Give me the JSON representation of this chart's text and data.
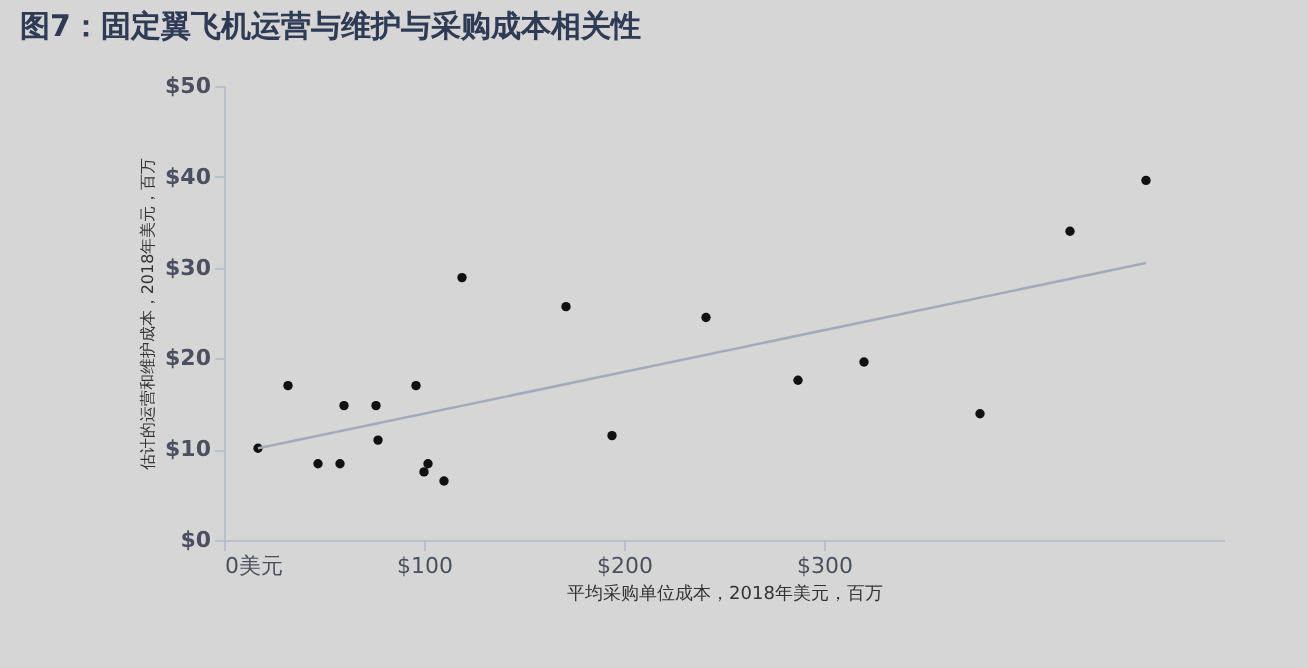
{
  "chart_data": {
    "type": "scatter",
    "title": "图7：固定翼飞机运营与维护与采购成本相关性",
    "xlabel": "平均采购单位成本，2018年美元，百万",
    "ylabel": "估计的运营和维护成本，2018年美元，百万",
    "xlim": [
      0,
      500
    ],
    "xticks": [
      {
        "value": 0,
        "label": "0美元"
      },
      {
        "value": 100,
        "label": "$100"
      },
      {
        "value": 200,
        "label": "$200"
      },
      {
        "value": 300,
        "label": "$300"
      }
    ],
    "ylim": [
      0,
      50
    ],
    "yticks": [
      {
        "value": 0,
        "label": "$0"
      },
      {
        "value": 10,
        "label": "$10"
      },
      {
        "value": 20,
        "label": "$20"
      },
      {
        "value": 30,
        "label": "$30"
      },
      {
        "value": 40,
        "label": "$40"
      },
      {
        "value": 50,
        "label": "$50"
      }
    ],
    "grid": false,
    "series": [
      {
        "marker": "circle",
        "color": "#111111",
        "x": [
          17,
          32,
          47,
          58,
          60,
          76,
          77,
          96,
          102,
          100,
          110,
          119,
          171,
          194,
          241,
          287,
          320,
          378,
          423,
          461
        ],
        "values": [
          10.1,
          17.0,
          8.4,
          8.4,
          14.8,
          14.8,
          11.0,
          17.0,
          8.4,
          7.5,
          6.5,
          28.9,
          25.7,
          11.5,
          24.5,
          17.6,
          19.6,
          13.9,
          34.0,
          39.6
        ]
      },
      {
        "type": "line",
        "color": "#a3abbb",
        "x": [
          17,
          461
        ],
        "values": [
          10.1,
          30.5
        ]
      }
    ]
  }
}
